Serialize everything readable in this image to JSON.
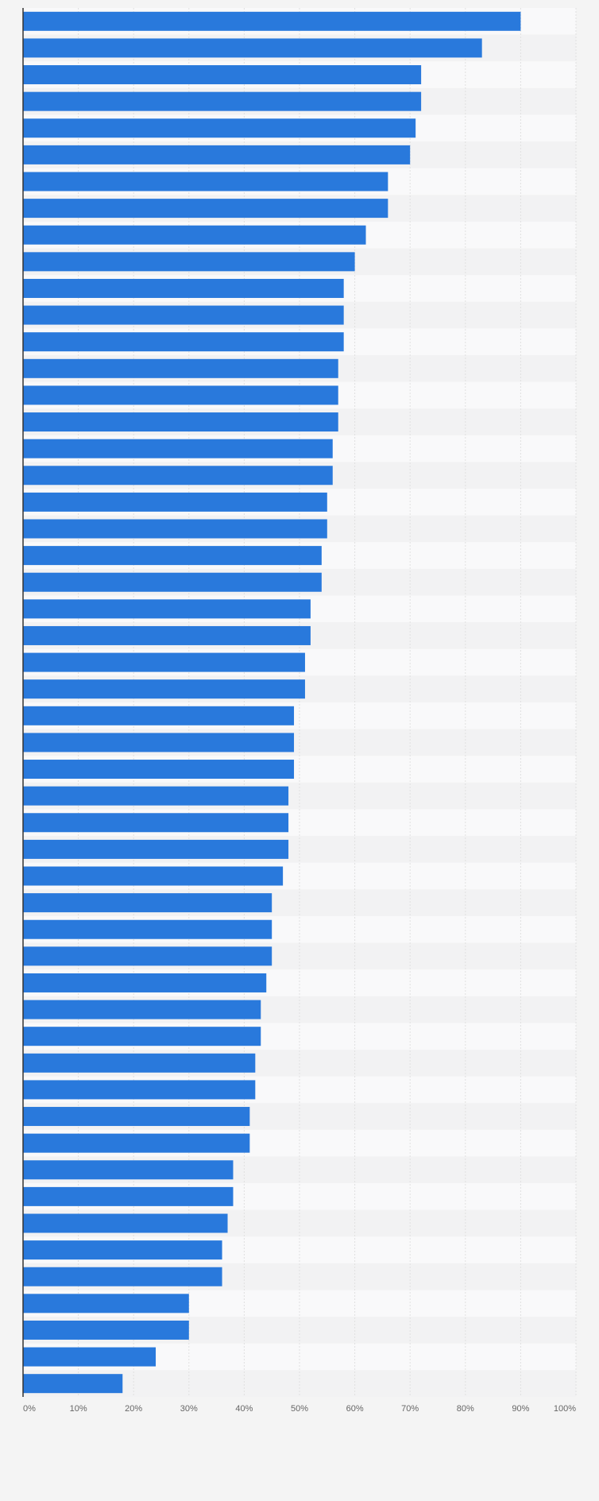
{
  "colors": {
    "bar": "#2979dc",
    "row_light": "#f9f9fa",
    "row_dark": "#f2f2f3",
    "grid": "#e0e0e0",
    "axis": "#333333",
    "background": "#f4f4f4"
  },
  "chart_data": {
    "type": "bar",
    "orientation": "horizontal",
    "title": "",
    "xlabel": "",
    "ylabel": "",
    "xlim": [
      0,
      100
    ],
    "grid": true,
    "legend": "none",
    "x_ticks": [
      "0%",
      "10%",
      "20%",
      "30%",
      "40%",
      "50%",
      "60%",
      "70%",
      "80%",
      "90%",
      "100%"
    ],
    "values": [
      90,
      83,
      72,
      72,
      71,
      70,
      66,
      66,
      62,
      60,
      58,
      58,
      58,
      57,
      57,
      57,
      56,
      56,
      55,
      55,
      54,
      54,
      52,
      52,
      51,
      51,
      49,
      49,
      49,
      48,
      48,
      48,
      47,
      45,
      45,
      45,
      44,
      43,
      43,
      42,
      42,
      41,
      41,
      38,
      38,
      37,
      36,
      36,
      30,
      30,
      24,
      18
    ]
  }
}
